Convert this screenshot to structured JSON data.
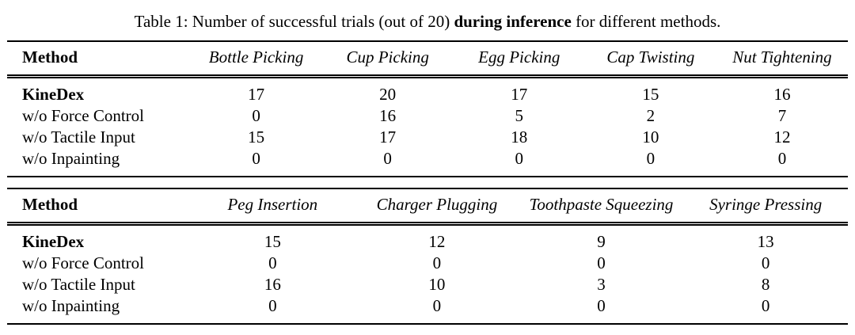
{
  "caption": {
    "prefix": "Table 1: Number of successful trials (out of 20) ",
    "bold": "during inference",
    "suffix": " for different methods."
  },
  "chart_data": [
    {
      "type": "table",
      "title": "Table 1: Number of successful trials (out of 20) during inference for different methods.",
      "method_header": "Method",
      "categories": [
        "Bottle Picking",
        "Cup Picking",
        "Egg Picking",
        "Cap Twisting",
        "Nut Tightening"
      ],
      "series": [
        {
          "name": "KineDex",
          "values": [
            17,
            20,
            17,
            15,
            16
          ]
        },
        {
          "name": "w/o Force Control",
          "values": [
            0,
            16,
            5,
            2,
            7
          ]
        },
        {
          "name": "w/o Tactile Input",
          "values": [
            15,
            17,
            18,
            10,
            12
          ]
        },
        {
          "name": "w/o Inpainting",
          "values": [
            0,
            0,
            0,
            0,
            0
          ]
        }
      ]
    },
    {
      "type": "table",
      "method_header": "Method",
      "categories": [
        "Peg Insertion",
        "Charger Plugging",
        "Toothpaste Squeezing",
        "Syringe Pressing"
      ],
      "series": [
        {
          "name": "KineDex",
          "values": [
            15,
            12,
            9,
            13
          ]
        },
        {
          "name": "w/o Force Control",
          "values": [
            0,
            0,
            0,
            0
          ]
        },
        {
          "name": "w/o Tactile Input",
          "values": [
            16,
            10,
            3,
            8
          ]
        },
        {
          "name": "w/o Inpainting",
          "values": [
            0,
            0,
            0,
            0
          ]
        }
      ]
    }
  ],
  "tables": [
    {
      "method_header": "Method",
      "columns": [
        "Bottle Picking",
        "Cup Picking",
        "Egg Picking",
        "Cap Twisting",
        "Nut Tightening"
      ],
      "rows": [
        {
          "method": "KineDex",
          "bold": true,
          "values": [
            "17",
            "20",
            "17",
            "15",
            "16"
          ]
        },
        {
          "method": "w/o Force Control",
          "bold": false,
          "values": [
            "0",
            "16",
            "5",
            "2",
            "7"
          ]
        },
        {
          "method": "w/o Tactile Input",
          "bold": false,
          "values": [
            "15",
            "17",
            "18",
            "10",
            "12"
          ]
        },
        {
          "method": "w/o Inpainting",
          "bold": false,
          "values": [
            "0",
            "0",
            "0",
            "0",
            "0"
          ]
        }
      ]
    },
    {
      "method_header": "Method",
      "columns": [
        "Peg Insertion",
        "Charger Plugging",
        "Toothpaste Squeezing",
        "Syringe Pressing"
      ],
      "rows": [
        {
          "method": "KineDex",
          "bold": true,
          "values": [
            "15",
            "12",
            "9",
            "13"
          ]
        },
        {
          "method": "w/o Force Control",
          "bold": false,
          "values": [
            "0",
            "0",
            "0",
            "0"
          ]
        },
        {
          "method": "w/o Tactile Input",
          "bold": false,
          "values": [
            "16",
            "10",
            "3",
            "8"
          ]
        },
        {
          "method": "w/o Inpainting",
          "bold": false,
          "values": [
            "0",
            "0",
            "0",
            "0"
          ]
        }
      ]
    }
  ],
  "colors": {
    "text": "#000000",
    "background": "#ffffff",
    "rule": "#000000"
  }
}
